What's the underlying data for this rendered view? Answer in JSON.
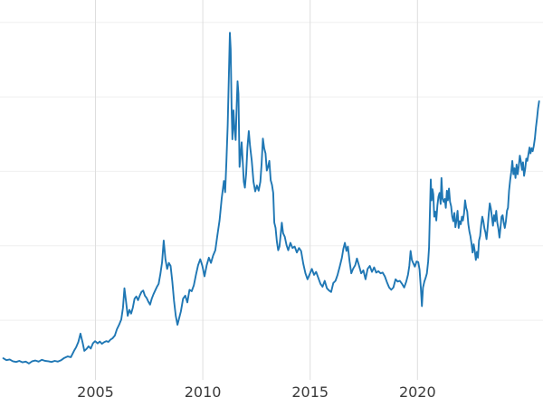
{
  "chart_data": {
    "type": "line",
    "title": "",
    "xlabel": "",
    "ylabel": "",
    "legend": false,
    "grid": true,
    "line_color": "#1f77b4",
    "grid_color_vertical": "#dedede",
    "grid_color_horizontal": "#efefef",
    "background_color": "#ffffff",
    "tick_label_color": "#3a3a3a",
    "x_ticks": [
      2005,
      2010,
      2015,
      2020
    ],
    "x_tick_labels": [
      "2005",
      "2010",
      "2015",
      "2020"
    ],
    "xlim": [
      2000.55,
      2025.85
    ],
    "ylim": [
      2,
      53
    ],
    "y_gridlines": [
      10,
      20,
      30,
      40,
      50
    ],
    "points": [
      [
        2000.7,
        4.9
      ],
      [
        2000.85,
        4.65
      ],
      [
        2001.0,
        4.75
      ],
      [
        2001.15,
        4.5
      ],
      [
        2001.3,
        4.4
      ],
      [
        2001.45,
        4.55
      ],
      [
        2001.6,
        4.35
      ],
      [
        2001.75,
        4.45
      ],
      [
        2001.9,
        4.2
      ],
      [
        2002.05,
        4.5
      ],
      [
        2002.2,
        4.6
      ],
      [
        2002.35,
        4.45
      ],
      [
        2002.5,
        4.7
      ],
      [
        2002.65,
        4.55
      ],
      [
        2002.8,
        4.5
      ],
      [
        2002.95,
        4.4
      ],
      [
        2003.1,
        4.55
      ],
      [
        2003.25,
        4.45
      ],
      [
        2003.4,
        4.65
      ],
      [
        2003.55,
        4.95
      ],
      [
        2003.7,
        5.15
      ],
      [
        2003.85,
        5.05
      ],
      [
        2004.0,
        5.9
      ],
      [
        2004.1,
        6.4
      ],
      [
        2004.2,
        7.1
      ],
      [
        2004.3,
        8.2
      ],
      [
        2004.4,
        7.0
      ],
      [
        2004.48,
        5.9
      ],
      [
        2004.58,
        6.15
      ],
      [
        2004.68,
        6.5
      ],
      [
        2004.78,
        6.2
      ],
      [
        2004.88,
        6.9
      ],
      [
        2004.98,
        7.2
      ],
      [
        2005.1,
        6.9
      ],
      [
        2005.2,
        7.15
      ],
      [
        2005.3,
        6.85
      ],
      [
        2005.4,
        7.05
      ],
      [
        2005.5,
        7.2
      ],
      [
        2005.6,
        7.1
      ],
      [
        2005.7,
        7.4
      ],
      [
        2005.8,
        7.6
      ],
      [
        2005.9,
        7.95
      ],
      [
        2006.0,
        8.8
      ],
      [
        2006.1,
        9.4
      ],
      [
        2006.2,
        10.1
      ],
      [
        2006.28,
        11.7
      ],
      [
        2006.35,
        14.3
      ],
      [
        2006.42,
        12.6
      ],
      [
        2006.5,
        10.6
      ],
      [
        2006.58,
        11.4
      ],
      [
        2006.66,
        10.9
      ],
      [
        2006.74,
        11.7
      ],
      [
        2006.82,
        12.9
      ],
      [
        2006.9,
        13.2
      ],
      [
        2006.98,
        12.7
      ],
      [
        2007.06,
        13.3
      ],
      [
        2007.14,
        13.8
      ],
      [
        2007.22,
        14.0
      ],
      [
        2007.3,
        13.3
      ],
      [
        2007.38,
        13.0
      ],
      [
        2007.46,
        12.5
      ],
      [
        2007.54,
        12.1
      ],
      [
        2007.62,
        12.9
      ],
      [
        2007.7,
        13.5
      ],
      [
        2007.78,
        14.0
      ],
      [
        2007.86,
        14.5
      ],
      [
        2007.94,
        14.9
      ],
      [
        2008.02,
        16.2
      ],
      [
        2008.1,
        17.8
      ],
      [
        2008.18,
        20.7
      ],
      [
        2008.26,
        18.2
      ],
      [
        2008.34,
        16.9
      ],
      [
        2008.42,
        17.7
      ],
      [
        2008.5,
        17.3
      ],
      [
        2008.58,
        15.2
      ],
      [
        2008.66,
        12.6
      ],
      [
        2008.74,
        10.6
      ],
      [
        2008.82,
        9.4
      ],
      [
        2008.9,
        10.3
      ],
      [
        2008.98,
        11.2
      ],
      [
        2009.08,
        12.9
      ],
      [
        2009.18,
        13.3
      ],
      [
        2009.28,
        12.4
      ],
      [
        2009.38,
        14.1
      ],
      [
        2009.48,
        13.9
      ],
      [
        2009.58,
        14.7
      ],
      [
        2009.68,
        16.1
      ],
      [
        2009.78,
        17.4
      ],
      [
        2009.88,
        18.2
      ],
      [
        2009.98,
        17.3
      ],
      [
        2010.08,
        15.9
      ],
      [
        2010.18,
        17.4
      ],
      [
        2010.28,
        18.4
      ],
      [
        2010.38,
        17.7
      ],
      [
        2010.48,
        18.7
      ],
      [
        2010.58,
        19.4
      ],
      [
        2010.68,
        21.4
      ],
      [
        2010.78,
        23.4
      ],
      [
        2010.88,
        26.4
      ],
      [
        2010.98,
        28.7
      ],
      [
        2011.04,
        27.2
      ],
      [
        2011.1,
        31.4
      ],
      [
        2011.16,
        36.2
      ],
      [
        2011.21,
        42.4
      ],
      [
        2011.26,
        48.6
      ],
      [
        2011.3,
        46.4
      ],
      [
        2011.34,
        38.5
      ],
      [
        2011.38,
        34.3
      ],
      [
        2011.43,
        38.2
      ],
      [
        2011.48,
        35.6
      ],
      [
        2011.53,
        34.2
      ],
      [
        2011.58,
        39.1
      ],
      [
        2011.62,
        42.1
      ],
      [
        2011.66,
        40.4
      ],
      [
        2011.71,
        30.6
      ],
      [
        2011.76,
        32.1
      ],
      [
        2011.81,
        33.9
      ],
      [
        2011.86,
        31.4
      ],
      [
        2011.91,
        28.6
      ],
      [
        2011.96,
        27.8
      ],
      [
        2012.02,
        29.7
      ],
      [
        2012.08,
        33.2
      ],
      [
        2012.14,
        35.4
      ],
      [
        2012.2,
        33.4
      ],
      [
        2012.28,
        31.4
      ],
      [
        2012.36,
        28.6
      ],
      [
        2012.44,
        27.3
      ],
      [
        2012.52,
        28.1
      ],
      [
        2012.6,
        27.4
      ],
      [
        2012.68,
        28.6
      ],
      [
        2012.74,
        31.1
      ],
      [
        2012.8,
        34.4
      ],
      [
        2012.86,
        33.1
      ],
      [
        2012.92,
        32.4
      ],
      [
        2012.98,
        30.1
      ],
      [
        2013.04,
        30.6
      ],
      [
        2013.1,
        31.4
      ],
      [
        2013.16,
        28.8
      ],
      [
        2013.22,
        28.2
      ],
      [
        2013.28,
        27.1
      ],
      [
        2013.33,
        23.1
      ],
      [
        2013.39,
        22.4
      ],
      [
        2013.45,
        20.6
      ],
      [
        2013.51,
        19.4
      ],
      [
        2013.57,
        19.9
      ],
      [
        2013.63,
        21.6
      ],
      [
        2013.68,
        23.1
      ],
      [
        2013.74,
        21.7
      ],
      [
        2013.82,
        21.2
      ],
      [
        2013.9,
        20.1
      ],
      [
        2013.98,
        19.4
      ],
      [
        2014.08,
        20.4
      ],
      [
        2014.18,
        19.7
      ],
      [
        2014.28,
        19.9
      ],
      [
        2014.38,
        19.1
      ],
      [
        2014.48,
        19.7
      ],
      [
        2014.58,
        19.3
      ],
      [
        2014.68,
        17.6
      ],
      [
        2014.78,
        16.3
      ],
      [
        2014.88,
        15.5
      ],
      [
        2014.98,
        16.2
      ],
      [
        2015.08,
        16.9
      ],
      [
        2015.18,
        16.1
      ],
      [
        2015.28,
        16.5
      ],
      [
        2015.38,
        15.7
      ],
      [
        2015.48,
        14.9
      ],
      [
        2015.58,
        14.5
      ],
      [
        2015.68,
        15.3
      ],
      [
        2015.78,
        14.3
      ],
      [
        2015.88,
        14.0
      ],
      [
        2015.98,
        13.8
      ],
      [
        2016.08,
        15.0
      ],
      [
        2016.18,
        15.3
      ],
      [
        2016.28,
        16.1
      ],
      [
        2016.38,
        17.2
      ],
      [
        2016.48,
        18.4
      ],
      [
        2016.55,
        19.6
      ],
      [
        2016.62,
        20.4
      ],
      [
        2016.69,
        19.3
      ],
      [
        2016.76,
        19.9
      ],
      [
        2016.84,
        17.9
      ],
      [
        2016.92,
        16.3
      ],
      [
        2017.0,
        16.9
      ],
      [
        2017.1,
        17.4
      ],
      [
        2017.18,
        18.3
      ],
      [
        2017.28,
        17.3
      ],
      [
        2017.38,
        16.3
      ],
      [
        2017.48,
        16.7
      ],
      [
        2017.58,
        15.5
      ],
      [
        2017.68,
        16.9
      ],
      [
        2017.78,
        17.3
      ],
      [
        2017.88,
        16.5
      ],
      [
        2017.98,
        17.1
      ],
      [
        2018.08,
        16.4
      ],
      [
        2018.18,
        16.6
      ],
      [
        2018.28,
        16.3
      ],
      [
        2018.38,
        16.4
      ],
      [
        2018.48,
        15.9
      ],
      [
        2018.58,
        15.1
      ],
      [
        2018.68,
        14.4
      ],
      [
        2018.78,
        14.1
      ],
      [
        2018.88,
        14.4
      ],
      [
        2018.98,
        15.5
      ],
      [
        2019.08,
        15.2
      ],
      [
        2019.18,
        15.3
      ],
      [
        2019.28,
        14.9
      ],
      [
        2019.38,
        14.4
      ],
      [
        2019.48,
        15.2
      ],
      [
        2019.56,
        16.1
      ],
      [
        2019.62,
        17.3
      ],
      [
        2019.68,
        19.3
      ],
      [
        2019.74,
        18.1
      ],
      [
        2019.8,
        17.7
      ],
      [
        2019.88,
        17.2
      ],
      [
        2019.96,
        17.9
      ],
      [
        2020.04,
        17.8
      ],
      [
        2020.1,
        16.8
      ],
      [
        2020.16,
        14.2
      ],
      [
        2020.21,
        11.9
      ],
      [
        2020.26,
        14.4
      ],
      [
        2020.32,
        15.2
      ],
      [
        2020.38,
        15.7
      ],
      [
        2020.44,
        16.3
      ],
      [
        2020.5,
        17.9
      ],
      [
        2020.54,
        19.8
      ],
      [
        2020.58,
        24.3
      ],
      [
        2020.62,
        28.9
      ],
      [
        2020.66,
        26.1
      ],
      [
        2020.7,
        27.6
      ],
      [
        2020.74,
        26.9
      ],
      [
        2020.78,
        23.9
      ],
      [
        2020.83,
        24.6
      ],
      [
        2020.88,
        23.4
      ],
      [
        2020.93,
        25.4
      ],
      [
        2020.98,
        26.6
      ],
      [
        2021.03,
        27.1
      ],
      [
        2021.08,
        25.6
      ],
      [
        2021.12,
        29.1
      ],
      [
        2021.17,
        26.3
      ],
      [
        2021.22,
        25.9
      ],
      [
        2021.27,
        26.3
      ],
      [
        2021.32,
        25.1
      ],
      [
        2021.37,
        27.4
      ],
      [
        2021.42,
        26.1
      ],
      [
        2021.47,
        27.7
      ],
      [
        2021.52,
        25.9
      ],
      [
        2021.57,
        25.3
      ],
      [
        2021.62,
        23.9
      ],
      [
        2021.67,
        23.3
      ],
      [
        2021.72,
        24.4
      ],
      [
        2021.77,
        22.5
      ],
      [
        2021.82,
        23.4
      ],
      [
        2021.87,
        24.7
      ],
      [
        2021.92,
        22.4
      ],
      [
        2021.97,
        23.3
      ],
      [
        2022.02,
        22.9
      ],
      [
        2022.07,
        23.9
      ],
      [
        2022.12,
        23.4
      ],
      [
        2022.17,
        24.3
      ],
      [
        2022.22,
        26.1
      ],
      [
        2022.27,
        25.1
      ],
      [
        2022.32,
        24.6
      ],
      [
        2022.37,
        22.9
      ],
      [
        2022.42,
        21.9
      ],
      [
        2022.47,
        21.3
      ],
      [
        2022.52,
        20.3
      ],
      [
        2022.57,
        19.1
      ],
      [
        2022.62,
        20.2
      ],
      [
        2022.67,
        19.3
      ],
      [
        2022.72,
        18.1
      ],
      [
        2022.77,
        19.2
      ],
      [
        2022.82,
        18.4
      ],
      [
        2022.87,
        20.7
      ],
      [
        2022.92,
        21.3
      ],
      [
        2022.97,
        22.8
      ],
      [
        2023.02,
        23.9
      ],
      [
        2023.07,
        23.3
      ],
      [
        2023.12,
        22.3
      ],
      [
        2023.17,
        21.8
      ],
      [
        2023.22,
        20.9
      ],
      [
        2023.27,
        22.4
      ],
      [
        2023.32,
        24.2
      ],
      [
        2023.37,
        25.7
      ],
      [
        2023.42,
        25.0
      ],
      [
        2023.47,
        23.8
      ],
      [
        2023.52,
        22.7
      ],
      [
        2023.57,
        24.1
      ],
      [
        2023.62,
        23.3
      ],
      [
        2023.67,
        24.7
      ],
      [
        2023.72,
        23.1
      ],
      [
        2023.77,
        22.3
      ],
      [
        2023.82,
        21.1
      ],
      [
        2023.87,
        22.4
      ],
      [
        2023.92,
        23.9
      ],
      [
        2023.97,
        24.1
      ],
      [
        2024.02,
        23.1
      ],
      [
        2024.07,
        22.4
      ],
      [
        2024.12,
        23.3
      ],
      [
        2024.17,
        24.7
      ],
      [
        2024.22,
        25.1
      ],
      [
        2024.27,
        27.4
      ],
      [
        2024.32,
        28.8
      ],
      [
        2024.37,
        29.9
      ],
      [
        2024.42,
        31.4
      ],
      [
        2024.47,
        29.6
      ],
      [
        2024.52,
        30.4
      ],
      [
        2024.57,
        29.1
      ],
      [
        2024.62,
        30.9
      ],
      [
        2024.67,
        29.6
      ],
      [
        2024.72,
        30.7
      ],
      [
        2024.77,
        32.1
      ],
      [
        2024.82,
        31.3
      ],
      [
        2024.87,
        30.2
      ],
      [
        2024.92,
        31.2
      ],
      [
        2024.97,
        29.4
      ],
      [
        2025.02,
        30.3
      ],
      [
        2025.07,
        31.7
      ],
      [
        2025.12,
        31.4
      ],
      [
        2025.17,
        32.3
      ],
      [
        2025.22,
        33.2
      ],
      [
        2025.27,
        32.4
      ],
      [
        2025.32,
        33.1
      ],
      [
        2025.37,
        32.7
      ],
      [
        2025.42,
        33.4
      ],
      [
        2025.47,
        34.4
      ],
      [
        2025.52,
        35.9
      ],
      [
        2025.57,
        37.1
      ],
      [
        2025.62,
        38.4
      ],
      [
        2025.67,
        39.4
      ]
    ]
  }
}
